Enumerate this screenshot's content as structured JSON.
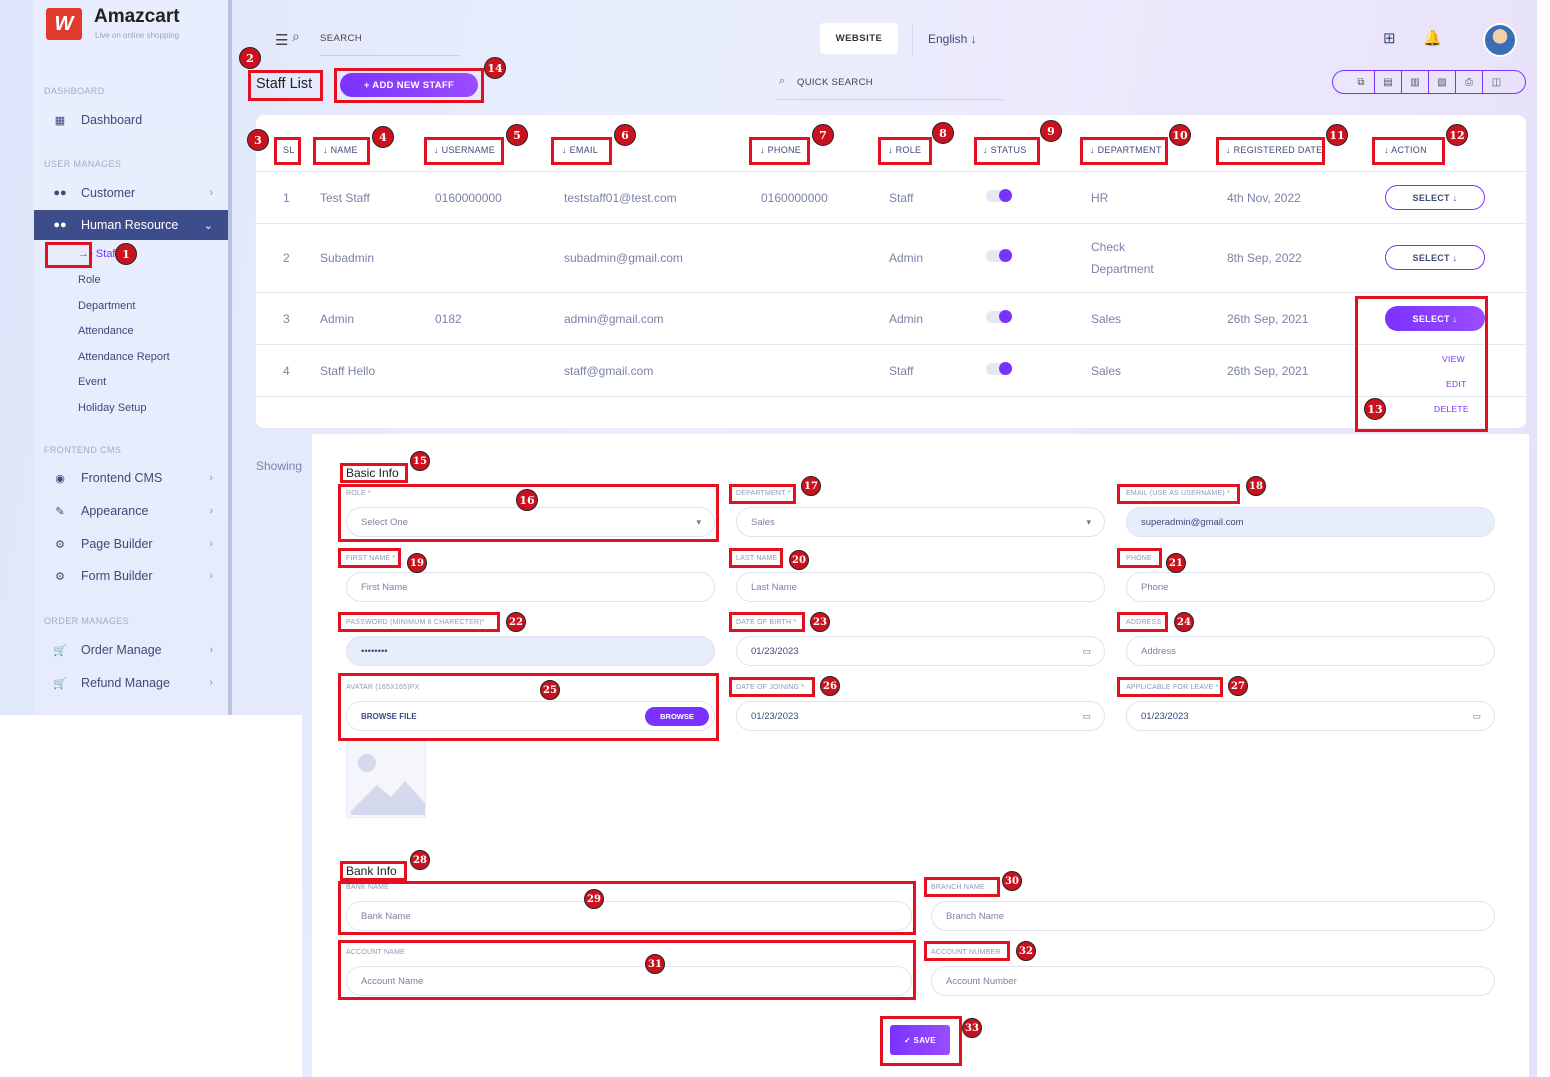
{
  "brand": {
    "name": "Amazcart",
    "tagline": "Live on online shopping",
    "logo_glyph": "W"
  },
  "sidebar": {
    "sections": [
      "DASHBOARD",
      "USER MANAGES",
      "FRONTEND CMS",
      "ORDER MANAGES"
    ],
    "items": [
      {
        "label": "Dashboard",
        "icon": "grid-icon"
      },
      {
        "label": "Customer",
        "icon": "users-icon"
      },
      {
        "label": "Human Resource",
        "icon": "users-icon"
      },
      {
        "label": "Frontend CMS",
        "icon": "eye-icon"
      },
      {
        "label": "Appearance",
        "icon": "wrench-icon"
      },
      {
        "label": "Page Builder",
        "icon": "gears-icon"
      },
      {
        "label": "Form Builder",
        "icon": "gears-icon"
      },
      {
        "label": "Order Manage",
        "icon": "cart-icon"
      },
      {
        "label": "Refund Manage",
        "icon": "cart-icon"
      }
    ],
    "hr_sub": [
      "Staff",
      "Role",
      "Department",
      "Attendance",
      "Attendance Report",
      "Event",
      "Holiday Setup"
    ]
  },
  "topbar": {
    "search_label": "SEARCH",
    "website_btn": "WEBSITE",
    "language": "English ↓"
  },
  "page": {
    "title": "Staff List",
    "add_btn": "+ ADD NEW STAFF",
    "quick_search": "QUICK SEARCH",
    "showing": "Showing"
  },
  "table": {
    "headers": [
      "SL",
      "↓ NAME",
      "↓ USERNAME",
      "↓ EMAIL",
      "↓ PHONE",
      "↓ ROLE",
      "↓ STATUS",
      "↓ DEPARTMENT",
      "↓ REGISTERED DATE",
      "↓ ACTION"
    ],
    "rows": [
      {
        "sl": "1",
        "name": "Test Staff",
        "username": "0160000000",
        "email": "teststaff01@test.com",
        "phone": "0160000000",
        "role": "Staff",
        "department": "HR",
        "department2": "",
        "date": "4th Nov, 2022",
        "status": true
      },
      {
        "sl": "2",
        "name": "Subadmin",
        "username": "",
        "email": "subadmin@gmail.com",
        "phone": "",
        "role": "Admin",
        "department": "Check",
        "department2": "Department",
        "date": "8th Sep, 2022",
        "status": true
      },
      {
        "sl": "3",
        "name": "Admin",
        "username": "0182",
        "email": "admin@gmail.com",
        "phone": "",
        "role": "Admin",
        "department": "Sales",
        "department2": "",
        "date": "26th Sep, 2021",
        "status": true
      },
      {
        "sl": "4",
        "name": "Staff Hello",
        "username": "",
        "email": "staff@gmail.com",
        "phone": "",
        "role": "Staff",
        "department": "Sales",
        "department2": "",
        "date": "26th Sep, 2021",
        "status": true
      }
    ],
    "select_label": "SELECT ↓",
    "dropdown": [
      "VIEW",
      "EDIT",
      "DELETE"
    ]
  },
  "form": {
    "basic_title": "Basic Info",
    "role_label": "ROLE *",
    "role_value": "Select One",
    "department_label": "DEPARTMENT *",
    "department_value": "Sales",
    "email_label": "EMAIL (USE AS USERNAME) *",
    "email_value": "superadmin@gmail.com",
    "first_label": "FIRST NAME *",
    "first_ph": "First Name",
    "last_label": "LAST NAME",
    "last_ph": "Last Name",
    "phone_label": "PHONE",
    "phone_ph": "Phone",
    "password_label": "PASSWORD (MINIMUM 8 CHARECTER)*",
    "password_value": "••••••••",
    "dob_label": "DATE OF BIRTH *",
    "dob_value": "01/23/2023",
    "address_label": "ADDRESS",
    "address_ph": "Address",
    "avatar_label": "AVATAR (165X165)PX",
    "browse_file": "BROWSE FILE",
    "browse_btn": "BROWSE",
    "doj_label": "DATE OF JOINING *",
    "doj_value": "01/23/2023",
    "leave_label": "APPLICABLE FOR LEAVE *",
    "leave_value": "01/23/2023",
    "bank_title": "Bank Info",
    "bank_label": "BANK NAME",
    "bank_ph": "Bank Name",
    "branch_label": "BRANCH NAME",
    "branch_ph": "Branch Name",
    "acc_name_label": "ACCOUNT NAME",
    "acc_name_ph": "Account Name",
    "acc_num_label": "ACCOUNT NUMBER",
    "acc_num_ph": "Account Number",
    "save": "✓ SAVE"
  },
  "badges": [
    "1",
    "2",
    "3",
    "4",
    "5",
    "6",
    "7",
    "8",
    "9",
    "10",
    "11",
    "12",
    "13",
    "14",
    "15",
    "16",
    "17",
    "18",
    "19",
    "20",
    "21",
    "22",
    "23",
    "24",
    "25",
    "26",
    "27",
    "28",
    "29",
    "30",
    "31",
    "32",
    "33"
  ],
  "colors": {
    "accent": "#7c32ff",
    "sidebar_active": "#3d4d8c",
    "annotation": "#e3111f"
  }
}
